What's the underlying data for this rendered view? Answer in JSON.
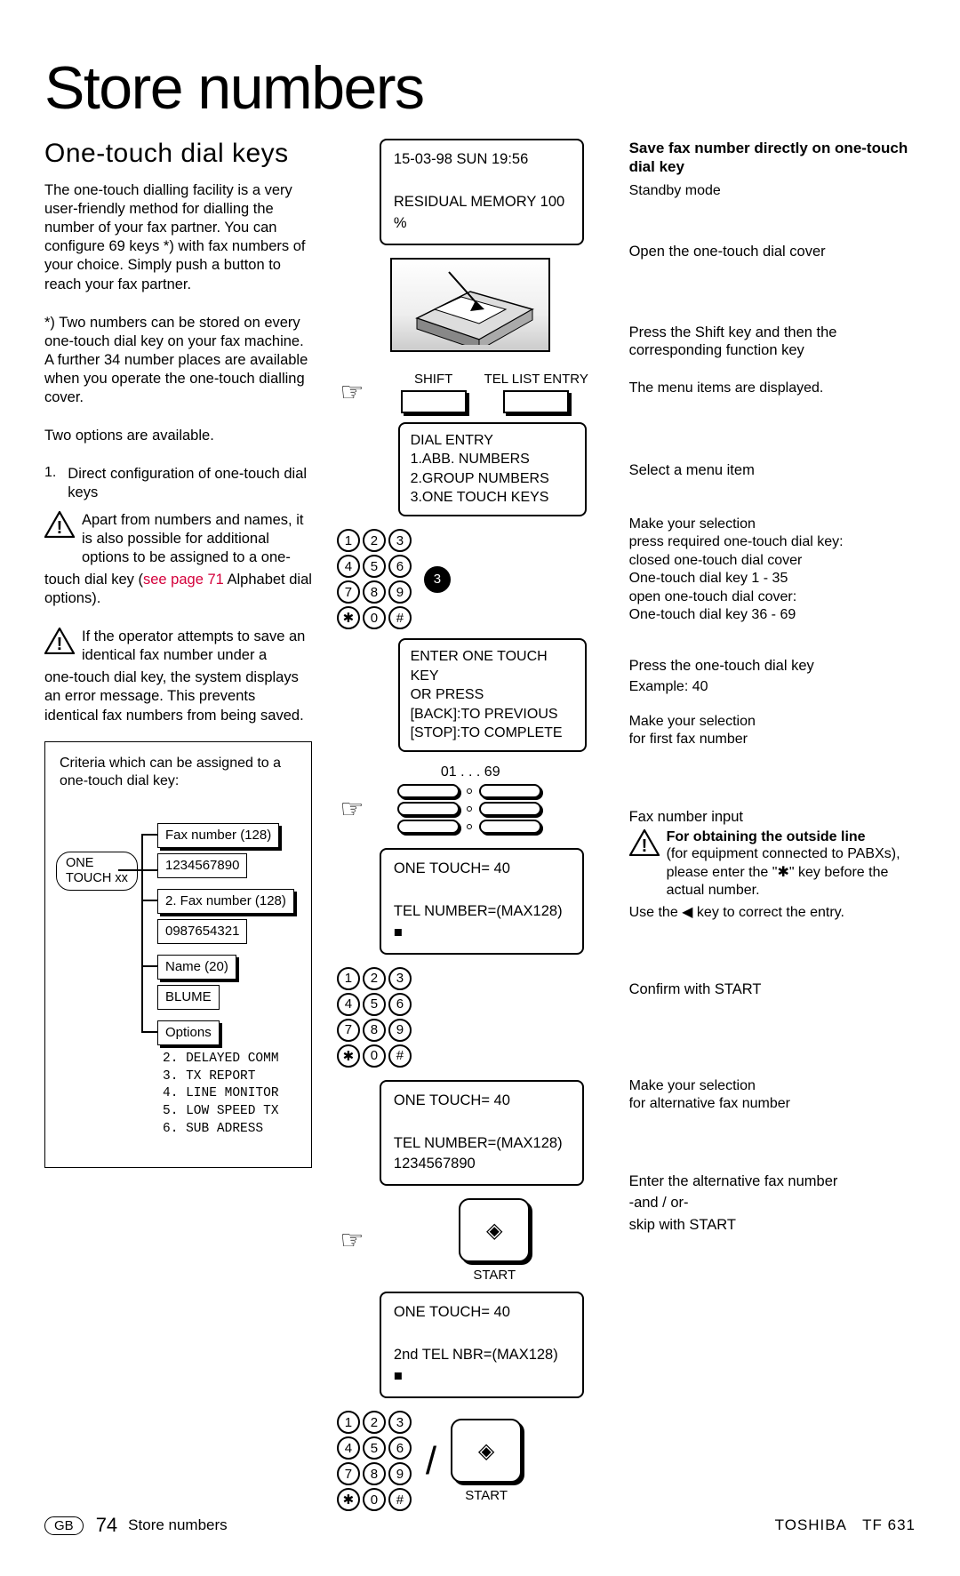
{
  "page": {
    "title": "Store numbers",
    "subtitle": "One-touch dial keys",
    "gb": "GB",
    "page_number": "74",
    "footer_section": "Store numbers",
    "brand": "TOSHIBA",
    "model": "TF 631"
  },
  "left": {
    "intro": "The one-touch dialling facility is a very user-friendly method for dialling the number of your fax partner. You can configure 69 keys *) with fax numbers of your choice. Simply push a button to reach your fax partner.",
    "note_star": "*) Two numbers can be stored on every one-touch dial key on your fax machine. A further 34 number places are available when you operate the one-touch dialling cover.",
    "two_options": "Two options are available.",
    "opt1_num": "1.",
    "opt1_head": "Direct configuration of one-touch dial keys",
    "warn1_lead": "Apart from numbers and names, it is also possible for additional options to be assigned to a one-",
    "warn1_tail_a": "touch dial key (",
    "warn1_tail_link": "see page 71",
    "warn1_tail_b": " Alphabet dial options).",
    "warn2_lead": "If the operator attempts to save an identical fax number under a",
    "warn2_tail": "one-touch dial key, the system displays an error message. This prevents identical fax numbers from being saved.",
    "criteria_intro": "Criteria which can be assigned to a one-touch dial key:",
    "pill": "ONE\nTOUCH xx",
    "fax1_label": "Fax number (128)",
    "fax1_value": "1234567890",
    "fax2_label": "2. Fax number (128)",
    "fax2_value": "0987654321",
    "name_label": "Name (20)",
    "name_value": "BLUME",
    "options_label": "Options",
    "options_list": "2. DELAYED COMM\n3. TX REPORT\n4. LINE MONITOR\n5. LOW SPEED TX\n6. SUB ADRESS"
  },
  "mid": {
    "lcd1": "15-03-98   SUN    19:56\n\nRESIDUAL MEMORY 100 %",
    "shift": "SHIFT",
    "tel_list": "TEL LIST ENTRY",
    "menu1": "DIAL ENTRY\n1.ABB. NUMBERS\n2.GROUP NUMBERS\n3.ONE TOUCH KEYS",
    "keypad": [
      "1",
      "2",
      "3",
      "4",
      "5",
      "6",
      "7",
      "8",
      "9",
      "✱",
      "0",
      "#"
    ],
    "solid_key": "3",
    "menu2": "ENTER ONE TOUCH KEY\nOR PRESS\n[BACK]:TO PREVIOUS\n[STOP]:TO COMPLETE",
    "range": "01 . . . 69",
    "lcd2": "ONE TOUCH=        40\n\nTEL NUMBER=(MAX128)\n■",
    "lcd3": "ONE TOUCH=        40\n\nTEL NUMBER=(MAX128)\n1234567890",
    "start": "START",
    "lcd4": "ONE TOUCH=        40\n\n2nd TEL NBR=(MAX128)\n■"
  },
  "right": {
    "head": "Save fax number directly on one-touch dial key",
    "standby": "Standby mode",
    "step1": "Open the one-touch dial cover",
    "step2": "Press the Shift key and then the corresponding function key",
    "step2_note": "The menu items are displayed.",
    "step3": "Select a menu item",
    "sel1": "Make your selection",
    "sel2": "press required one-touch dial key:",
    "sel3": "closed one-touch dial cover",
    "sel4": "One-touch dial key 1 - 35",
    "sel5": "open one-touch dial cover:",
    "sel6": "One-touch dial key 36 - 69",
    "step4": "Press the one-touch dial key",
    "ex40": "Example: 40",
    "first1": "Make your selection",
    "first2": "for first fax number",
    "fax_input": "Fax number input",
    "outside_bold": "For obtaining the outside line",
    "outside_body": "(for equipment connected to PABXs), please enter the \"✱\" key before the actual number.",
    "use_arrow": "Use the ◀ key to correct the entry.",
    "confirm": "Confirm with START",
    "alt1": "Make your selection",
    "alt2": "for alternative fax number",
    "step_last1": "Enter the alternative fax number",
    "step_last2": "-and / or-",
    "step_last3": "skip with START"
  }
}
